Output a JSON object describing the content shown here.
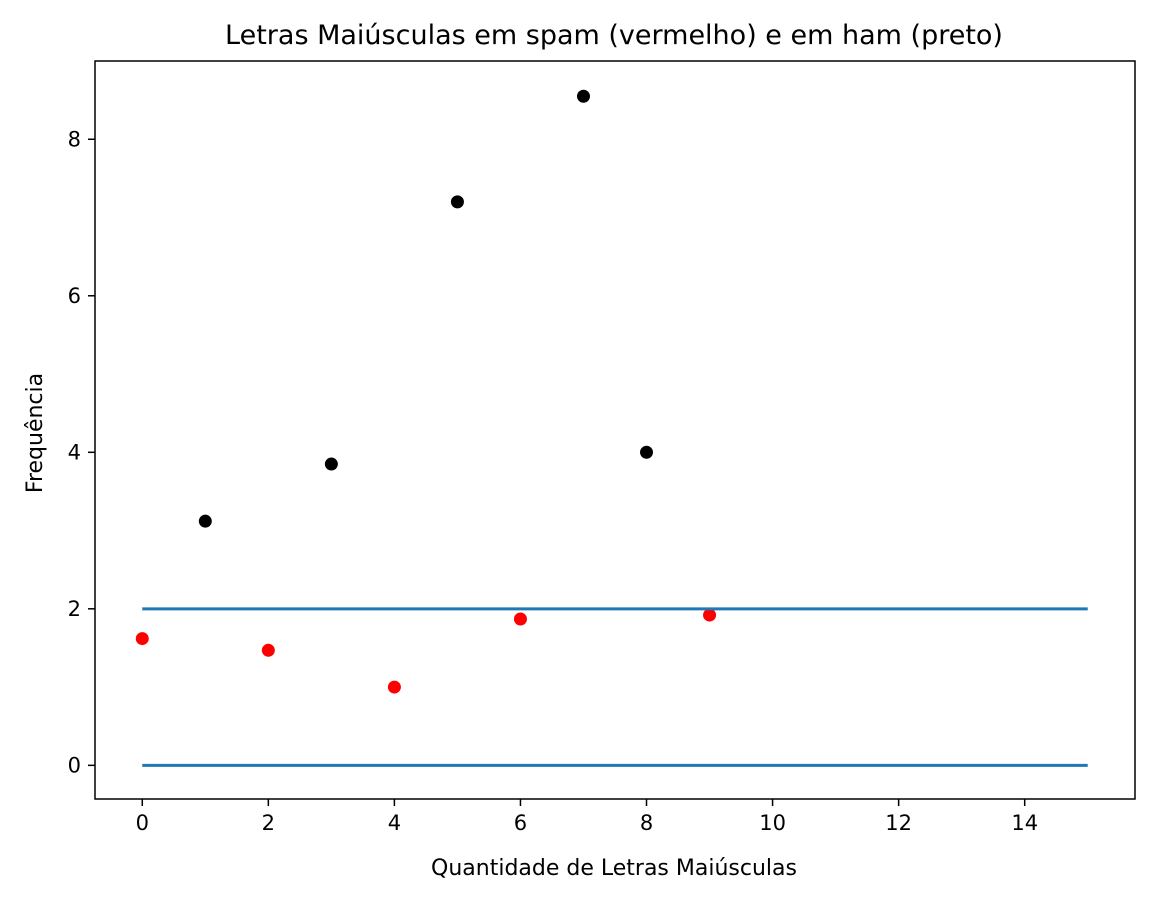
{
  "chart_data": {
    "type": "scatter",
    "title": "Letras Maiúsculas em spam (vermelho) e em ham (preto)",
    "xlabel": "Quantidade de Letras Maiúsculas",
    "ylabel": "Frequência",
    "xlim": [
      -0.75,
      15.75
    ],
    "ylim": [
      -0.43,
      9.0
    ],
    "xticks": [
      0,
      2,
      4,
      6,
      8,
      10,
      12,
      14
    ],
    "yticks": [
      0,
      2,
      4,
      6,
      8
    ],
    "grid": false,
    "series": [
      {
        "color": "#000000",
        "kind": "scatter",
        "points": [
          {
            "x": 1,
            "y": 3.12
          },
          {
            "x": 3,
            "y": 3.85
          },
          {
            "x": 5,
            "y": 7.2
          },
          {
            "x": 7,
            "y": 8.55
          },
          {
            "x": 8,
            "y": 4.0
          }
        ]
      },
      {
        "color": "#ff0000",
        "kind": "scatter",
        "points": [
          {
            "x": 0,
            "y": 1.62
          },
          {
            "x": 2,
            "y": 1.47
          },
          {
            "x": 4,
            "y": 1.0
          },
          {
            "x": 6,
            "y": 1.87
          },
          {
            "x": 9,
            "y": 1.92
          }
        ]
      },
      {
        "color": "#1f77b4",
        "kind": "line",
        "points": [
          {
            "x": 0,
            "y": 2.0
          },
          {
            "x": 15,
            "y": 2.0
          }
        ]
      },
      {
        "color": "#1f77b4",
        "kind": "line",
        "points": [
          {
            "x": 0,
            "y": 0.0
          },
          {
            "x": 15,
            "y": 0.0
          }
        ]
      }
    ]
  }
}
